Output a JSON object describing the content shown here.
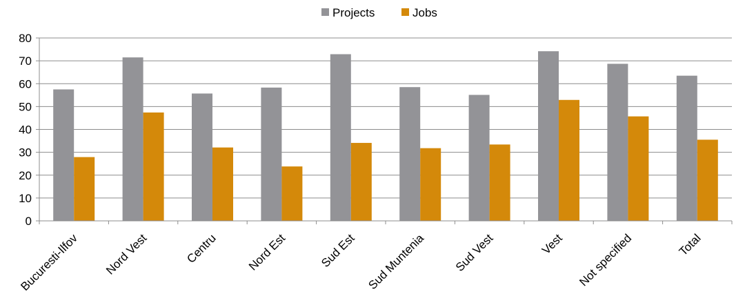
{
  "chart_data": {
    "type": "bar",
    "categories": [
      "Bucuresti-Ilfov",
      "Nord Vest",
      "Centru",
      "Nord Est",
      "Sud Est",
      "Sud Muntenia",
      "Sud Vest",
      "Vest",
      "Not specified",
      "Total"
    ],
    "series": [
      {
        "name": "Projects",
        "color": "#939397",
        "values": [
          57.5,
          71.5,
          55.7,
          58.3,
          72.9,
          58.5,
          55.1,
          74.2,
          68.7,
          63.5
        ]
      },
      {
        "name": "Jobs",
        "color": "#d4890a",
        "values": [
          27.9,
          47.4,
          32.1,
          23.8,
          34.1,
          31.8,
          33.4,
          52.9,
          45.7,
          35.5
        ]
      }
    ],
    "ylim": [
      0,
      80
    ],
    "yticks": [
      0,
      10,
      20,
      30,
      40,
      50,
      60,
      70,
      80
    ],
    "grid": true,
    "legend_position": "top-center",
    "xlabel": "",
    "ylabel": ""
  }
}
